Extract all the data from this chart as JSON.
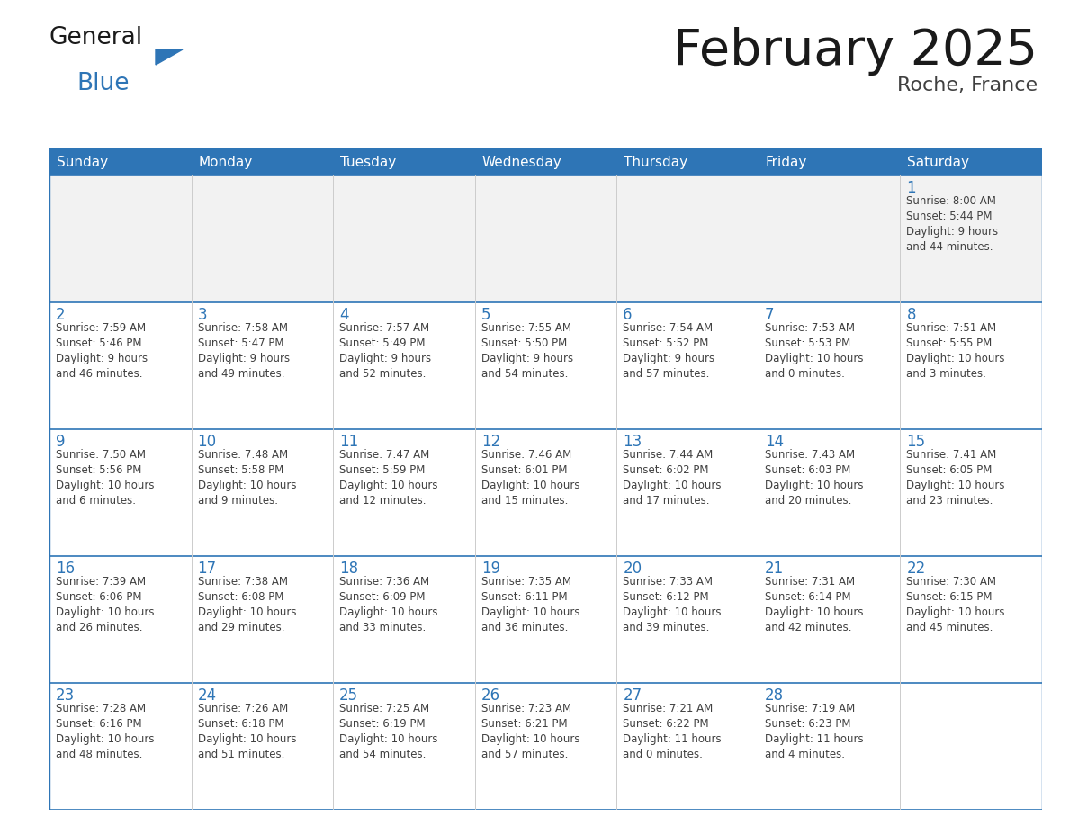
{
  "title": "February 2025",
  "subtitle": "Roche, France",
  "header_bg": "#2E75B6",
  "header_text_color": "#FFFFFF",
  "grid_line_color": "#2E75B6",
  "day_headers": [
    "Sunday",
    "Monday",
    "Tuesday",
    "Wednesday",
    "Thursday",
    "Friday",
    "Saturday"
  ],
  "cell_bg": "#FFFFFF",
  "week1_bg": "#F2F2F2",
  "day_num_color": "#2E75B6",
  "info_text_color": "#404040",
  "title_color": "#1A1A1A",
  "subtitle_color": "#404040",
  "logo_general_color": "#1A1A1A",
  "logo_blue_color": "#2E75B6",
  "calendar_data": [
    [
      null,
      null,
      null,
      null,
      null,
      null,
      {
        "day": 1,
        "sunrise": "8:00 AM",
        "sunset": "5:44 PM",
        "daylight": "9 hours\nand 44 minutes."
      }
    ],
    [
      {
        "day": 2,
        "sunrise": "7:59 AM",
        "sunset": "5:46 PM",
        "daylight": "9 hours\nand 46 minutes."
      },
      {
        "day": 3,
        "sunrise": "7:58 AM",
        "sunset": "5:47 PM",
        "daylight": "9 hours\nand 49 minutes."
      },
      {
        "day": 4,
        "sunrise": "7:57 AM",
        "sunset": "5:49 PM",
        "daylight": "9 hours\nand 52 minutes."
      },
      {
        "day": 5,
        "sunrise": "7:55 AM",
        "sunset": "5:50 PM",
        "daylight": "9 hours\nand 54 minutes."
      },
      {
        "day": 6,
        "sunrise": "7:54 AM",
        "sunset": "5:52 PM",
        "daylight": "9 hours\nand 57 minutes."
      },
      {
        "day": 7,
        "sunrise": "7:53 AM",
        "sunset": "5:53 PM",
        "daylight": "10 hours\nand 0 minutes."
      },
      {
        "day": 8,
        "sunrise": "7:51 AM",
        "sunset": "5:55 PM",
        "daylight": "10 hours\nand 3 minutes."
      }
    ],
    [
      {
        "day": 9,
        "sunrise": "7:50 AM",
        "sunset": "5:56 PM",
        "daylight": "10 hours\nand 6 minutes."
      },
      {
        "day": 10,
        "sunrise": "7:48 AM",
        "sunset": "5:58 PM",
        "daylight": "10 hours\nand 9 minutes."
      },
      {
        "day": 11,
        "sunrise": "7:47 AM",
        "sunset": "5:59 PM",
        "daylight": "10 hours\nand 12 minutes."
      },
      {
        "day": 12,
        "sunrise": "7:46 AM",
        "sunset": "6:01 PM",
        "daylight": "10 hours\nand 15 minutes."
      },
      {
        "day": 13,
        "sunrise": "7:44 AM",
        "sunset": "6:02 PM",
        "daylight": "10 hours\nand 17 minutes."
      },
      {
        "day": 14,
        "sunrise": "7:43 AM",
        "sunset": "6:03 PM",
        "daylight": "10 hours\nand 20 minutes."
      },
      {
        "day": 15,
        "sunrise": "7:41 AM",
        "sunset": "6:05 PM",
        "daylight": "10 hours\nand 23 minutes."
      }
    ],
    [
      {
        "day": 16,
        "sunrise": "7:39 AM",
        "sunset": "6:06 PM",
        "daylight": "10 hours\nand 26 minutes."
      },
      {
        "day": 17,
        "sunrise": "7:38 AM",
        "sunset": "6:08 PM",
        "daylight": "10 hours\nand 29 minutes."
      },
      {
        "day": 18,
        "sunrise": "7:36 AM",
        "sunset": "6:09 PM",
        "daylight": "10 hours\nand 33 minutes."
      },
      {
        "day": 19,
        "sunrise": "7:35 AM",
        "sunset": "6:11 PM",
        "daylight": "10 hours\nand 36 minutes."
      },
      {
        "day": 20,
        "sunrise": "7:33 AM",
        "sunset": "6:12 PM",
        "daylight": "10 hours\nand 39 minutes."
      },
      {
        "day": 21,
        "sunrise": "7:31 AM",
        "sunset": "6:14 PM",
        "daylight": "10 hours\nand 42 minutes."
      },
      {
        "day": 22,
        "sunrise": "7:30 AM",
        "sunset": "6:15 PM",
        "daylight": "10 hours\nand 45 minutes."
      }
    ],
    [
      {
        "day": 23,
        "sunrise": "7:28 AM",
        "sunset": "6:16 PM",
        "daylight": "10 hours\nand 48 minutes."
      },
      {
        "day": 24,
        "sunrise": "7:26 AM",
        "sunset": "6:18 PM",
        "daylight": "10 hours\nand 51 minutes."
      },
      {
        "day": 25,
        "sunrise": "7:25 AM",
        "sunset": "6:19 PM",
        "daylight": "10 hours\nand 54 minutes."
      },
      {
        "day": 26,
        "sunrise": "7:23 AM",
        "sunset": "6:21 PM",
        "daylight": "10 hours\nand 57 minutes."
      },
      {
        "day": 27,
        "sunrise": "7:21 AM",
        "sunset": "6:22 PM",
        "daylight": "11 hours\nand 0 minutes."
      },
      {
        "day": 28,
        "sunrise": "7:19 AM",
        "sunset": "6:23 PM",
        "daylight": "11 hours\nand 4 minutes."
      },
      null
    ]
  ],
  "figsize": [
    11.88,
    9.18
  ],
  "dpi": 100
}
